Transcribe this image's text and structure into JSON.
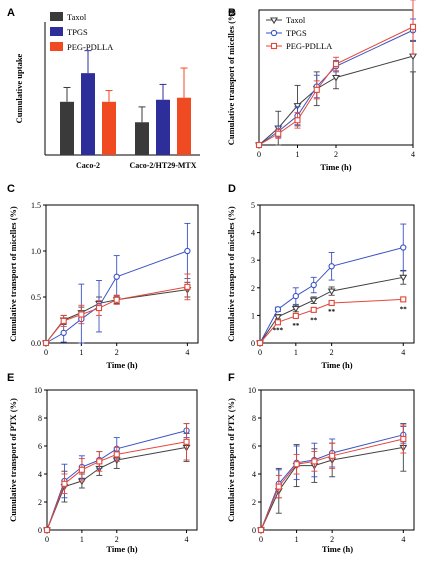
{
  "chart_data": [
    {
      "panel": "A",
      "type": "bar",
      "xlabel": "",
      "ylabel": "Cumulative uptake",
      "ylim": [
        0,
        6.5
      ],
      "y_ticks_shown": false,
      "categories": [
        "Caco-2",
        "Caco-2/HT29-MTX"
      ],
      "legend_position": "top-left",
      "series": [
        {
          "name": "Taxol",
          "color": "#3a3a3a",
          "values": [
            2.6,
            1.6
          ],
          "errors": [
            0.7,
            0.75
          ]
        },
        {
          "name": "TPGS",
          "color": "#2e2e9a",
          "values": [
            4.0,
            2.7
          ],
          "errors": [
            1.1,
            0.75
          ]
        },
        {
          "name": "PEG-PDLLA",
          "color": "#f04a22",
          "values": [
            2.6,
            2.8
          ],
          "errors": [
            0.55,
            1.45
          ]
        }
      ]
    },
    {
      "panel": "B",
      "type": "line",
      "xlabel": "Time (h)",
      "ylabel": "Cumulative transport of micelles (%)",
      "xlim": [
        0,
        4
      ],
      "ylim": [
        0,
        1.2
      ],
      "x_ticks": [
        0,
        1,
        2,
        4
      ],
      "x_tick_labels": [
        "0",
        "1",
        "2",
        "4"
      ],
      "y_ticks": [],
      "legend_position": "top-left",
      "x": [
        0,
        0.5,
        1,
        1.5,
        2,
        4
      ],
      "series": [
        {
          "name": "Taxol",
          "color": "#404040",
          "marker": "triangle-down",
          "values": [
            0,
            0.15,
            0.35,
            0.5,
            0.6,
            0.79
          ],
          "errors": [
            0,
            0.15,
            0.18,
            0.15,
            0.1,
            0.14
          ]
        },
        {
          "name": "TPGS",
          "color": "#3a52c4",
          "marker": "circle",
          "values": [
            0,
            0.12,
            0.26,
            0.52,
            0.7,
            1.02
          ],
          "errors": [
            0,
            0.05,
            0.08,
            0.1,
            0.05,
            0.1
          ]
        },
        {
          "name": "PEG-PDLLA",
          "color": "#e2473a",
          "marker": "square",
          "values": [
            0,
            0.1,
            0.22,
            0.49,
            0.72,
            1.05
          ],
          "errors": [
            0,
            0.04,
            0.07,
            0.08,
            0.06,
            0.24
          ]
        }
      ]
    },
    {
      "panel": "C",
      "type": "line",
      "xlabel": "Time (h)",
      "ylabel": "Cumulative transport of micelles (%)",
      "xlim": [
        0,
        4.3
      ],
      "ylim": [
        0,
        1.5
      ],
      "x_ticks": [
        0,
        1,
        2,
        4
      ],
      "x_tick_labels": [
        "0",
        "1",
        "2",
        "4"
      ],
      "y_ticks": [
        0.0,
        0.5,
        1.0,
        1.5
      ],
      "y_tick_labels": [
        "0.0",
        "0.5",
        "1.0",
        "1.5"
      ],
      "x": [
        0,
        0.5,
        1,
        1.5,
        2,
        4
      ],
      "series": [
        {
          "name": "Taxol",
          "color": "#404040",
          "marker": "triangle-down",
          "values": [
            0,
            0.25,
            0.33,
            0.43,
            0.47,
            0.58
          ],
          "errors": [
            0,
            0.05,
            0.06,
            0.07,
            0.04,
            0.08
          ]
        },
        {
          "name": "TPGS",
          "color": "#3a52c4",
          "marker": "circle",
          "values": [
            0,
            0.11,
            0.26,
            0.4,
            0.72,
            1.0
          ],
          "errors": [
            0,
            0.1,
            0.38,
            0.28,
            0.23,
            0.3
          ]
        },
        {
          "name": "PEG-PDLLA",
          "color": "#e2473a",
          "marker": "square",
          "values": [
            0,
            0.24,
            0.31,
            0.38,
            0.47,
            0.61
          ],
          "errors": [
            0,
            0.06,
            0.1,
            0.08,
            0.05,
            0.14
          ]
        }
      ]
    },
    {
      "panel": "D",
      "type": "line",
      "xlabel": "Time (h)",
      "ylabel": "Cumulative transport of micelles (%)",
      "xlim": [
        0,
        4.3
      ],
      "ylim": [
        0,
        5
      ],
      "x_ticks": [
        0,
        1,
        2,
        4
      ],
      "x_tick_labels": [
        "0",
        "1",
        "2",
        "4"
      ],
      "y_ticks": [
        0,
        1,
        2,
        3,
        4,
        5
      ],
      "y_tick_labels": [
        "0",
        "1",
        "2",
        "3",
        "4",
        "5"
      ],
      "x": [
        0,
        0.5,
        1,
        1.5,
        2,
        4
      ],
      "annotations": [
        {
          "text": "***",
          "x": 0.5,
          "y": 0.38
        },
        {
          "text": "**",
          "x": 1,
          "y": 0.55
        },
        {
          "text": "**",
          "x": 1.5,
          "y": 0.75
        },
        {
          "text": "**",
          "x": 2,
          "y": 1.05
        },
        {
          "text": "**",
          "x": 4,
          "y": 1.15
        }
      ],
      "series": [
        {
          "name": "Taxol",
          "color": "#404040",
          "marker": "triangle-down",
          "values": [
            0,
            0.95,
            1.25,
            1.55,
            1.88,
            2.38
          ],
          "errors": [
            0,
            0.08,
            0.12,
            0.12,
            0.15,
            0.25
          ]
        },
        {
          "name": "TPGS",
          "color": "#3a52c4",
          "marker": "circle",
          "values": [
            0,
            1.22,
            1.7,
            2.1,
            2.78,
            3.46
          ],
          "errors": [
            0,
            0.08,
            0.3,
            0.28,
            0.5,
            0.85
          ]
        },
        {
          "name": "PEG-PDLLA",
          "color": "#e2473a",
          "marker": "square",
          "values": [
            0,
            0.75,
            0.98,
            1.2,
            1.45,
            1.58
          ],
          "errors": [
            0,
            0.05,
            0.05,
            0.06,
            0.08,
            0.06
          ]
        }
      ]
    },
    {
      "panel": "E",
      "type": "line",
      "xlabel": "Time (h)",
      "ylabel": "Cumulative transport of PTX (%)",
      "xlim": [
        0,
        4.3
      ],
      "ylim": [
        0,
        10
      ],
      "x_ticks": [
        0,
        1,
        2,
        4
      ],
      "x_tick_labels": [
        "0",
        "1",
        "2",
        "4"
      ],
      "y_ticks": [
        0,
        2,
        4,
        6,
        8,
        10
      ],
      "y_tick_labels": [
        "0",
        "2",
        "4",
        "6",
        "8",
        "10"
      ],
      "x": [
        0,
        0.5,
        1,
        1.5,
        2,
        4
      ],
      "series": [
        {
          "name": "Taxol",
          "color": "#404040",
          "marker": "triangle-down",
          "values": [
            0,
            3.1,
            3.5,
            4.4,
            5.0,
            5.9
          ],
          "errors": [
            0,
            1.1,
            0.5,
            0.5,
            0.6,
            1.0
          ]
        },
        {
          "name": "TPGS",
          "color": "#3a52c4",
          "marker": "circle",
          "values": [
            0,
            3.5,
            4.5,
            5.0,
            5.8,
            7.1
          ],
          "errors": [
            0,
            1.2,
            0.8,
            0.6,
            0.8,
            0.5
          ]
        },
        {
          "name": "PEG-PDLLA",
          "color": "#e2473a",
          "marker": "square",
          "values": [
            0,
            3.3,
            4.3,
            4.9,
            5.4,
            6.3
          ],
          "errors": [
            0,
            0.7,
            0.8,
            0.7,
            0.5,
            1.3
          ]
        }
      ]
    },
    {
      "panel": "F",
      "type": "line",
      "xlabel": "Time (h)",
      "ylabel": "Cumulative transport of PTX (%)",
      "xlim": [
        0,
        4.3
      ],
      "ylim": [
        0,
        10
      ],
      "x_ticks": [
        0,
        1,
        2,
        4
      ],
      "x_tick_labels": [
        "0",
        "1",
        "2",
        "4"
      ],
      "y_ticks": [
        0,
        2,
        4,
        6,
        8,
        10
      ],
      "y_tick_labels": [
        "0",
        "2",
        "4",
        "6",
        "8",
        "10"
      ],
      "x": [
        0,
        0.5,
        1,
        1.5,
        2,
        4
      ],
      "series": [
        {
          "name": "Taxol",
          "color": "#404040",
          "marker": "triangle-down",
          "values": [
            0,
            2.8,
            4.6,
            4.6,
            5.0,
            5.9
          ],
          "errors": [
            0,
            1.6,
            1.5,
            1.2,
            1.2,
            1.7
          ]
        },
        {
          "name": "TPGS",
          "color": "#3a52c4",
          "marker": "circle",
          "values": [
            0,
            3.3,
            4.8,
            5.0,
            5.5,
            6.8
          ],
          "errors": [
            0,
            1.0,
            1.2,
            1.2,
            1.0,
            0.6
          ]
        },
        {
          "name": "PEG-PDLLA",
          "color": "#e2473a",
          "marker": "square",
          "values": [
            0,
            3.1,
            4.7,
            4.9,
            5.3,
            6.5
          ],
          "errors": [
            0,
            0.8,
            0.7,
            0.7,
            0.9,
            1.0
          ]
        }
      ]
    }
  ]
}
